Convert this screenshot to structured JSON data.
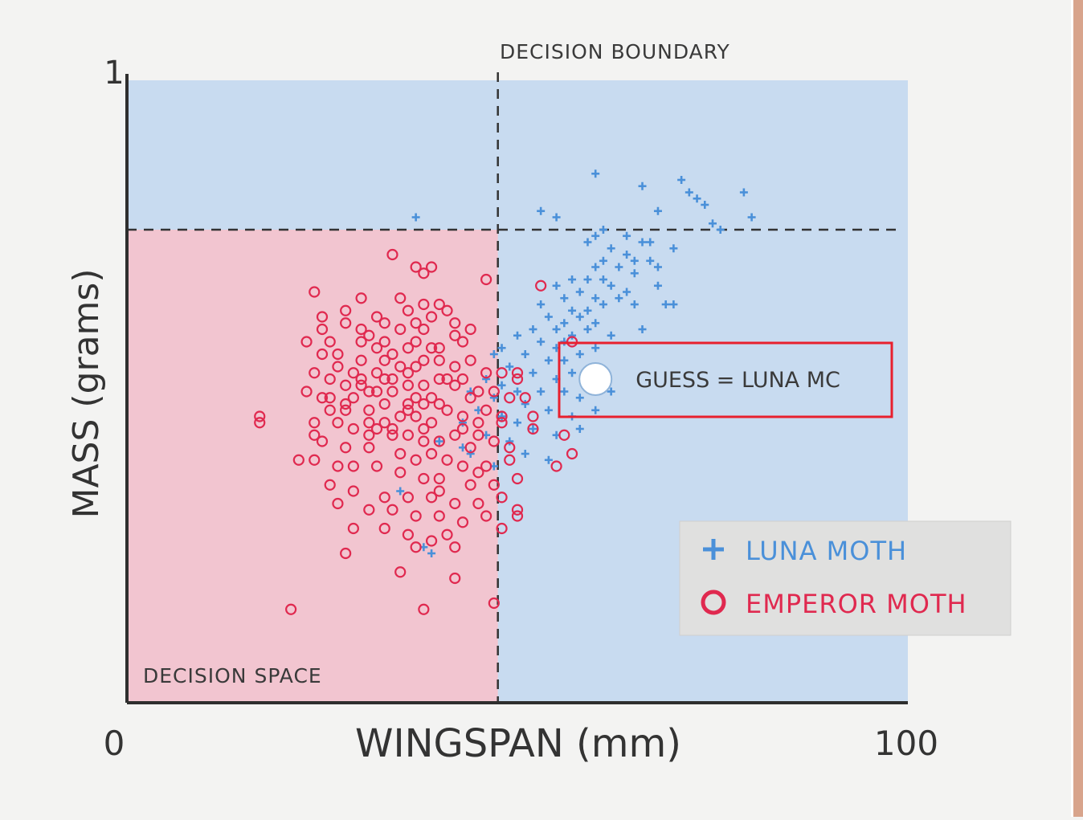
{
  "chart_data": {
    "type": "scatter",
    "xlabel": "WINGSPAN (mm)",
    "ylabel": "MASS (grams)",
    "xlim": [
      0,
      100
    ],
    "ylim": [
      0,
      1
    ],
    "x_tick_labels": [
      "0",
      "100"
    ],
    "y_tick_labels": [
      "1"
    ],
    "decision_boundary_x": 47.5,
    "decision_boundary_y": 0.76,
    "annotations": {
      "boundary": "DECISION BOUNDARY",
      "space": "DECISION SPACE",
      "guess": "GUESS = LUNA MC",
      "guess_point": {
        "x": 60,
        "y": 0.52
      }
    },
    "legend_position": "bottom-right",
    "grid": false,
    "colors": {
      "luna": "#4a90d9",
      "emperor": "#e0294f",
      "region_luna": "#c8dbf0",
      "region_emperor": "#f2c5d0",
      "highlight": "#e8202e"
    },
    "series": [
      {
        "name": "LUNA MOTH",
        "marker": "plus",
        "points": [
          [
            60,
            0.85
          ],
          [
            66,
            0.83
          ],
          [
            71,
            0.84
          ],
          [
            72,
            0.82
          ],
          [
            79,
            0.82
          ],
          [
            73,
            0.81
          ],
          [
            74,
            0.8
          ],
          [
            68,
            0.79
          ],
          [
            53,
            0.79
          ],
          [
            55,
            0.78
          ],
          [
            37,
            0.78
          ],
          [
            75,
            0.77
          ],
          [
            80,
            0.78
          ],
          [
            76,
            0.76
          ],
          [
            61,
            0.76
          ],
          [
            64,
            0.75
          ],
          [
            60,
            0.75
          ],
          [
            66,
            0.74
          ],
          [
            67,
            0.74
          ],
          [
            70,
            0.73
          ],
          [
            59,
            0.74
          ],
          [
            62,
            0.73
          ],
          [
            64,
            0.72
          ],
          [
            65,
            0.71
          ],
          [
            61,
            0.71
          ],
          [
            60,
            0.7
          ],
          [
            63,
            0.7
          ],
          [
            67,
            0.71
          ],
          [
            68,
            0.7
          ],
          [
            65,
            0.69
          ],
          [
            61,
            0.68
          ],
          [
            59,
            0.68
          ],
          [
            57,
            0.68
          ],
          [
            55,
            0.67
          ],
          [
            62,
            0.67
          ],
          [
            64,
            0.66
          ],
          [
            68,
            0.67
          ],
          [
            58,
            0.66
          ],
          [
            60,
            0.65
          ],
          [
            56,
            0.65
          ],
          [
            53,
            0.64
          ],
          [
            57,
            0.63
          ],
          [
            59,
            0.63
          ],
          [
            61,
            0.64
          ],
          [
            63,
            0.65
          ],
          [
            65,
            0.64
          ],
          [
            69,
            0.64
          ],
          [
            54,
            0.62
          ],
          [
            56,
            0.61
          ],
          [
            58,
            0.62
          ],
          [
            60,
            0.61
          ],
          [
            52,
            0.6
          ],
          [
            55,
            0.6
          ],
          [
            57,
            0.59
          ],
          [
            59,
            0.6
          ],
          [
            50,
            0.59
          ],
          [
            53,
            0.58
          ],
          [
            55,
            0.57
          ],
          [
            48,
            0.57
          ],
          [
            51,
            0.56
          ],
          [
            54,
            0.55
          ],
          [
            56,
            0.55
          ],
          [
            58,
            0.56
          ],
          [
            60,
            0.57
          ],
          [
            47,
            0.56
          ],
          [
            49,
            0.54
          ],
          [
            52,
            0.53
          ],
          [
            55,
            0.52
          ],
          [
            57,
            0.53
          ],
          [
            46,
            0.52
          ],
          [
            48,
            0.51
          ],
          [
            50,
            0.5
          ],
          [
            53,
            0.5
          ],
          [
            56,
            0.5
          ],
          [
            58,
            0.49
          ],
          [
            44,
            0.5
          ],
          [
            47,
            0.49
          ],
          [
            51,
            0.48
          ],
          [
            54,
            0.47
          ],
          [
            57,
            0.46
          ],
          [
            60,
            0.47
          ],
          [
            45,
            0.47
          ],
          [
            48,
            0.46
          ],
          [
            50,
            0.45
          ],
          [
            52,
            0.44
          ],
          [
            55,
            0.43
          ],
          [
            58,
            0.44
          ],
          [
            43,
            0.45
          ],
          [
            46,
            0.43
          ],
          [
            49,
            0.42
          ],
          [
            51,
            0.4
          ],
          [
            54,
            0.39
          ],
          [
            40,
            0.42
          ],
          [
            44,
            0.4
          ],
          [
            47,
            0.38
          ],
          [
            35,
            0.34
          ],
          [
            38,
            0.25
          ],
          [
            39,
            0.24
          ],
          [
            43,
            0.41
          ],
          [
            62,
            0.5
          ],
          [
            62,
            0.59
          ],
          [
            61,
            0.53
          ],
          [
            59,
            0.51
          ],
          [
            56,
            0.58
          ],
          [
            70,
            0.64
          ],
          [
            66,
            0.6
          ]
        ]
      },
      {
        "name": "EMPEROR MOTH",
        "marker": "circle",
        "points": [
          [
            34,
            0.72
          ],
          [
            46,
            0.68
          ],
          [
            53,
            0.67
          ],
          [
            24,
            0.66
          ],
          [
            30,
            0.65
          ],
          [
            35,
            0.65
          ],
          [
            38,
            0.64
          ],
          [
            40,
            0.64
          ],
          [
            36,
            0.63
          ],
          [
            39,
            0.62
          ],
          [
            41,
            0.63
          ],
          [
            42,
            0.61
          ],
          [
            25,
            0.62
          ],
          [
            28,
            0.61
          ],
          [
            32,
            0.62
          ],
          [
            35,
            0.6
          ],
          [
            38,
            0.6
          ],
          [
            42,
            0.59
          ],
          [
            44,
            0.6
          ],
          [
            30,
            0.58
          ],
          [
            33,
            0.58
          ],
          [
            36,
            0.57
          ],
          [
            40,
            0.57
          ],
          [
            43,
            0.58
          ],
          [
            23,
            0.58
          ],
          [
            25,
            0.56
          ],
          [
            27,
            0.56
          ],
          [
            30,
            0.55
          ],
          [
            33,
            0.55
          ],
          [
            35,
            0.54
          ],
          [
            37,
            0.54
          ],
          [
            40,
            0.55
          ],
          [
            42,
            0.54
          ],
          [
            44,
            0.55
          ],
          [
            46,
            0.53
          ],
          [
            48,
            0.53
          ],
          [
            50,
            0.53
          ],
          [
            24,
            0.53
          ],
          [
            26,
            0.52
          ],
          [
            28,
            0.51
          ],
          [
            30,
            0.51
          ],
          [
            32,
            0.5
          ],
          [
            34,
            0.5
          ],
          [
            36,
            0.51
          ],
          [
            38,
            0.51
          ],
          [
            40,
            0.52
          ],
          [
            42,
            0.51
          ],
          [
            45,
            0.5
          ],
          [
            47,
            0.5
          ],
          [
            23,
            0.5
          ],
          [
            25,
            0.49
          ],
          [
            28,
            0.48
          ],
          [
            31,
            0.47
          ],
          [
            33,
            0.48
          ],
          [
            36,
            0.47
          ],
          [
            38,
            0.48
          ],
          [
            41,
            0.47
          ],
          [
            43,
            0.46
          ],
          [
            46,
            0.47
          ],
          [
            48,
            0.46
          ],
          [
            17,
            0.46
          ],
          [
            17,
            0.45
          ],
          [
            24,
            0.45
          ],
          [
            27,
            0.45
          ],
          [
            29,
            0.44
          ],
          [
            31,
            0.45
          ],
          [
            34,
            0.44
          ],
          [
            36,
            0.43
          ],
          [
            38,
            0.44
          ],
          [
            40,
            0.42
          ],
          [
            42,
            0.43
          ],
          [
            45,
            0.43
          ],
          [
            47,
            0.42
          ],
          [
            49,
            0.41
          ],
          [
            25,
            0.42
          ],
          [
            28,
            0.41
          ],
          [
            31,
            0.41
          ],
          [
            35,
            0.4
          ],
          [
            37,
            0.39
          ],
          [
            39,
            0.4
          ],
          [
            41,
            0.39
          ],
          [
            43,
            0.38
          ],
          [
            46,
            0.38
          ],
          [
            22,
            0.39
          ],
          [
            24,
            0.39
          ],
          [
            27,
            0.38
          ],
          [
            29,
            0.38
          ],
          [
            32,
            0.38
          ],
          [
            35,
            0.37
          ],
          [
            38,
            0.36
          ],
          [
            40,
            0.36
          ],
          [
            44,
            0.35
          ],
          [
            47,
            0.35
          ],
          [
            50,
            0.36
          ],
          [
            26,
            0.35
          ],
          [
            29,
            0.34
          ],
          [
            33,
            0.33
          ],
          [
            36,
            0.33
          ],
          [
            39,
            0.33
          ],
          [
            42,
            0.32
          ],
          [
            45,
            0.32
          ],
          [
            48,
            0.33
          ],
          [
            27,
            0.32
          ],
          [
            31,
            0.31
          ],
          [
            34,
            0.31
          ],
          [
            37,
            0.3
          ],
          [
            40,
            0.3
          ],
          [
            43,
            0.29
          ],
          [
            46,
            0.3
          ],
          [
            50,
            0.3
          ],
          [
            29,
            0.28
          ],
          [
            33,
            0.28
          ],
          [
            36,
            0.27
          ],
          [
            39,
            0.26
          ],
          [
            41,
            0.27
          ],
          [
            42,
            0.25
          ],
          [
            28,
            0.24
          ],
          [
            37,
            0.25
          ],
          [
            35,
            0.21
          ],
          [
            21,
            0.15
          ],
          [
            38,
            0.15
          ],
          [
            47,
            0.16
          ],
          [
            42,
            0.2
          ],
          [
            40,
            0.34
          ],
          [
            38,
            0.42
          ],
          [
            37,
            0.46
          ],
          [
            39,
            0.49
          ],
          [
            36,
            0.53
          ],
          [
            34,
            0.56
          ],
          [
            32,
            0.57
          ],
          [
            41,
            0.52
          ],
          [
            43,
            0.52
          ],
          [
            44,
            0.49
          ],
          [
            45,
            0.45
          ],
          [
            32,
            0.53
          ],
          [
            30,
            0.52
          ],
          [
            33,
            0.52
          ],
          [
            37,
            0.49
          ],
          [
            40,
            0.48
          ],
          [
            50,
            0.52
          ],
          [
            52,
            0.46
          ],
          [
            52,
            0.44
          ],
          [
            49,
            0.39
          ],
          [
            48,
            0.45
          ],
          [
            35,
            0.46
          ],
          [
            36,
            0.48
          ],
          [
            38,
            0.55
          ],
          [
            37,
            0.58
          ],
          [
            39,
            0.57
          ],
          [
            38,
            0.69
          ],
          [
            39,
            0.7
          ],
          [
            37,
            0.7
          ],
          [
            37,
            0.61
          ],
          [
            39,
            0.45
          ],
          [
            34,
            0.43
          ],
          [
            31,
            0.43
          ],
          [
            32,
            0.44
          ],
          [
            33,
            0.45
          ],
          [
            28,
            0.47
          ],
          [
            26,
            0.47
          ],
          [
            27,
            0.54
          ],
          [
            29,
            0.53
          ],
          [
            25,
            0.6
          ],
          [
            26,
            0.58
          ],
          [
            31,
            0.59
          ],
          [
            33,
            0.61
          ],
          [
            28,
            0.63
          ],
          [
            30,
            0.6
          ],
          [
            57,
            0.58
          ],
          [
            51,
            0.49
          ],
          [
            56,
            0.43
          ],
          [
            57,
            0.4
          ],
          [
            55,
            0.38
          ],
          [
            50,
            0.31
          ],
          [
            48,
            0.28
          ],
          [
            45,
            0.37
          ],
          [
            44,
            0.41
          ],
          [
            43,
            0.44
          ],
          [
            49,
            0.49
          ],
          [
            24,
            0.43
          ],
          [
            26,
            0.49
          ],
          [
            29,
            0.49
          ],
          [
            31,
            0.5
          ],
          [
            34,
            0.52
          ]
        ]
      }
    ]
  }
}
